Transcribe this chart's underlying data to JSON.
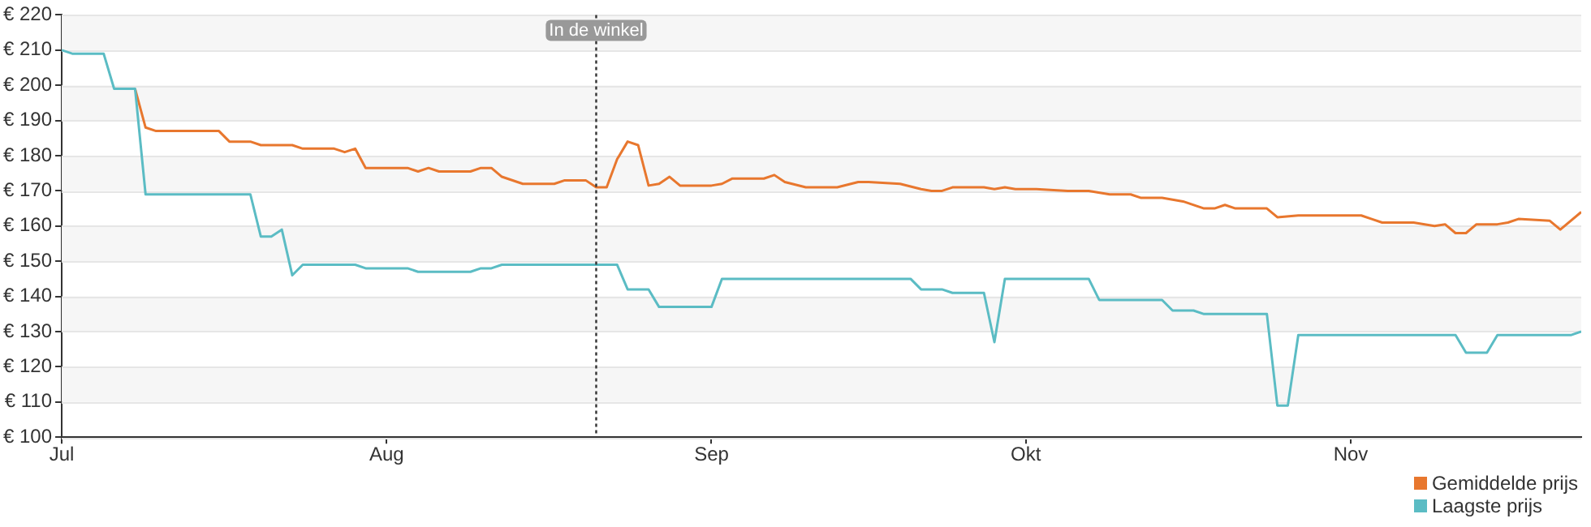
{
  "chart_data": {
    "type": "line",
    "legend": "bottom right",
    "grid": "y",
    "marker": "none",
    "line_style": "solid",
    "xlim": [
      "--07-01",
      "--11-23"
    ],
    "xticks": [
      {
        "value": "--07-01",
        "label": "Jul"
      },
      {
        "value": "--08-01",
        "label": "Aug"
      },
      {
        "value": "--09-01",
        "label": "Sep"
      },
      {
        "value": "--10-01",
        "label": "Okt"
      },
      {
        "value": "--11-01",
        "label": "Nov"
      }
    ],
    "ylim": [
      100,
      220
    ],
    "yticks": [
      {
        "value": 100,
        "label": "€ 100"
      },
      {
        "value": 110,
        "label": "€ 110"
      },
      {
        "value": 120,
        "label": "€ 120"
      },
      {
        "value": 130,
        "label": "€ 130"
      },
      {
        "value": 140,
        "label": "€ 140"
      },
      {
        "value": 150,
        "label": "€ 150"
      },
      {
        "value": 160,
        "label": "€ 160"
      },
      {
        "value": 170,
        "label": "€ 170"
      },
      {
        "value": 180,
        "label": "€ 180"
      },
      {
        "value": 190,
        "label": "€ 190"
      },
      {
        "value": 200,
        "label": "€ 200"
      },
      {
        "value": 210,
        "label": "€ 210"
      },
      {
        "value": 220,
        "label": "€ 220"
      }
    ],
    "ref_lines": [
      {
        "axis": "x",
        "value": "--08-21",
        "label": "In de winkel",
        "line_style": "dotted",
        "color": "#333333"
      }
    ],
    "series": [
      {
        "name": "Gemiddelde prijs",
        "color": "#e8772e",
        "x": [
          "--07-08",
          "--07-09",
          "--07-10",
          "--07-16",
          "--07-17",
          "--07-19",
          "--07-20",
          "--07-22",
          "--07-23",
          "--07-24",
          "--07-27",
          "--07-28",
          "--07-29",
          "--07-30",
          "--08-03",
          "--08-04",
          "--08-05",
          "--08-06",
          "--08-09",
          "--08-10",
          "--08-11",
          "--08-12",
          "--08-14",
          "--08-17",
          "--08-18",
          "--08-20",
          "--08-21",
          "--08-22",
          "--08-23",
          "--08-24",
          "--08-25",
          "--08-26",
          "--08-27",
          "--08-28",
          "--08-29",
          "--09-01",
          "--09-02",
          "--09-03",
          "--09-06",
          "--09-07",
          "--09-08",
          "--09-10",
          "--09-13",
          "--09-15",
          "--09-16",
          "--09-19",
          "--09-21",
          "--09-22",
          "--09-23",
          "--09-24",
          "--09-27",
          "--09-28",
          "--09-29",
          "--09-30",
          "--10-02",
          "--10-05",
          "--10-07",
          "--10-09",
          "--10-11",
          "--10-12",
          "--10-14",
          "--10-16",
          "--10-18",
          "--10-19",
          "--10-20",
          "--10-21",
          "--10-24",
          "--10-25",
          "--10-27",
          "--11-02",
          "--11-03",
          "--11-04",
          "--11-05",
          "--11-07",
          "--11-09",
          "--11-10",
          "--11-11",
          "--11-12",
          "--11-13",
          "--11-15",
          "--11-16",
          "--11-17",
          "--11-20",
          "--11-21",
          "--11-23"
        ],
        "values": [
          199,
          188,
          187,
          187,
          184,
          184,
          183,
          183,
          183,
          182,
          182,
          181,
          182,
          176.5,
          176.5,
          175.5,
          176.5,
          175.5,
          175.5,
          176.5,
          176.5,
          174,
          172,
          172,
          173,
          173,
          171,
          171,
          179,
          184,
          183,
          171.5,
          172,
          174,
          171.5,
          171.5,
          172,
          173.5,
          173.5,
          174.5,
          172.5,
          171,
          171,
          172.5,
          172.5,
          172,
          170.5,
          170,
          170,
          171,
          171,
          170.5,
          171,
          170.5,
          170.5,
          170,
          170,
          169,
          169,
          168,
          168,
          167,
          165,
          165,
          166,
          165,
          165,
          162.5,
          163,
          163,
          162,
          161,
          161,
          161,
          160,
          160.5,
          158,
          158,
          160.5,
          160.5,
          161,
          162,
          161.5,
          159,
          164
        ]
      },
      {
        "name": "Laagste prijs",
        "color": "#5bbcc4",
        "x": [
          "--07-01",
          "--07-02",
          "--07-05",
          "--07-06",
          "--07-08",
          "--07-09",
          "--07-19",
          "--07-20",
          "--07-21",
          "--07-22",
          "--07-23",
          "--07-24",
          "--07-29",
          "--07-30",
          "--08-03",
          "--08-04",
          "--08-09",
          "--08-10",
          "--08-11",
          "--08-12",
          "--08-23",
          "--08-24",
          "--08-26",
          "--08-27",
          "--09-01",
          "--09-02",
          "--09-20",
          "--09-21",
          "--09-23",
          "--09-24",
          "--09-27",
          "--09-28",
          "--09-29",
          "--10-07",
          "--10-08",
          "--10-14",
          "--10-15",
          "--10-17",
          "--10-18",
          "--10-24",
          "--10-25",
          "--10-26",
          "--10-27",
          "--11-11",
          "--11-12",
          "--11-14",
          "--11-15",
          "--11-22",
          "--11-23"
        ],
        "values": [
          210,
          209,
          209,
          199,
          199,
          169,
          169,
          157,
          157,
          159,
          146,
          149,
          149,
          148,
          148,
          147,
          147,
          148,
          148,
          149,
          149,
          142,
          142,
          137,
          137,
          145,
          145,
          142,
          142,
          141,
          141,
          127,
          145,
          145,
          139,
          139,
          136,
          136,
          135,
          135,
          109,
          109,
          129,
          129,
          124,
          124,
          129,
          129,
          130
        ]
      }
    ]
  }
}
